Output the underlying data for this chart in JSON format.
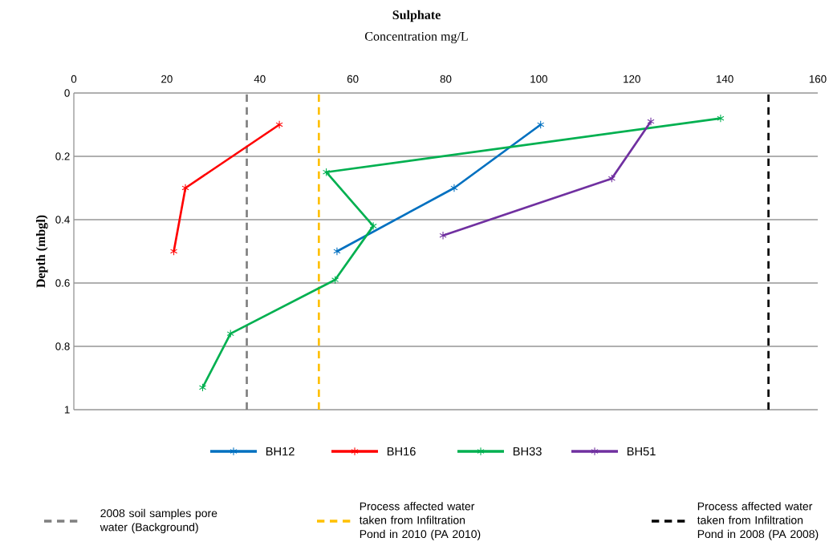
{
  "chart_data": {
    "type": "line",
    "title": "Sulphate",
    "xlabel": "Concentration mg/L",
    "ylabel": "Depth (mbgl)",
    "xlim": [
      0,
      160
    ],
    "xticks": [
      0,
      20,
      40,
      60,
      80,
      100,
      120,
      140,
      160
    ],
    "ylim": [
      1,
      0
    ],
    "yticks": [
      0,
      0.2,
      0.4,
      0.6,
      0.8,
      1
    ],
    "grid": "y",
    "legend": "bottom",
    "marker": "cross",
    "line_style": "solid",
    "series": [
      {
        "name": "BH12",
        "color": "#0070c0",
        "x": [
          100.4,
          81.8,
          56.6
        ],
        "values": [
          0.1,
          0.3,
          0.5
        ]
      },
      {
        "name": "BH16",
        "color": "#ff0000",
        "x": [
          44.2,
          24.0,
          21.5
        ],
        "values": [
          0.1,
          0.3,
          0.5
        ]
      },
      {
        "name": "BH33",
        "color": "#00b050",
        "x": [
          139.1,
          54.3,
          64.4,
          56.2,
          33.7,
          27.7
        ],
        "values": [
          0.08,
          0.25,
          0.42,
          0.59,
          0.76,
          0.93
        ]
      },
      {
        "name": "BH51",
        "color": "#7030a0",
        "x": [
          124.1,
          115.7,
          79.4
        ],
        "values": [
          0.09,
          0.27,
          0.45
        ]
      }
    ],
    "ref_lines": [
      {
        "axis": "x",
        "value": 37.2,
        "label": "2008 soil samples pore water (Background)",
        "color": "#7f7f7f",
        "line_style": "dashed"
      },
      {
        "axis": "x",
        "value": 52.7,
        "label": "Process affected water taken from Infiltration Pond in 2010 (PA 2010)",
        "color": "#ffc000",
        "line_style": "dashed"
      },
      {
        "axis": "x",
        "value": 149.4,
        "label": "Process affected water taken from Infiltration Pond in 2008 (PA 2008)",
        "color": "#000000",
        "line_style": "dashed"
      }
    ]
  }
}
